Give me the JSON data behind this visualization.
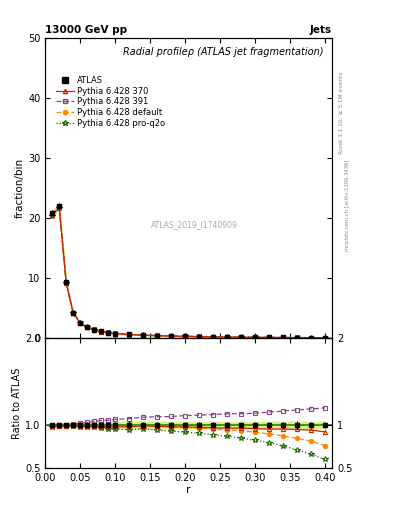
{
  "title_top": "13000 GeV pp",
  "title_right": "Jets",
  "main_title": "Radial profileρ (ATLAS jet fragmentation)",
  "watermark": "ATLAS_2019_I1740909",
  "right_label_top": "Rivet 3.1.10; ≥ 3.1M events",
  "right_label_bot": "mcplots.cern.ch [arXiv:1306.3436]",
  "xlabel": "r",
  "ylabel_main": "fraction/bin",
  "ylabel_ratio": "Ratio to ATLAS",
  "r_vals": [
    0.01,
    0.02,
    0.03,
    0.04,
    0.05,
    0.06,
    0.07,
    0.08,
    0.09,
    0.1,
    0.12,
    0.14,
    0.16,
    0.18,
    0.2,
    0.22,
    0.24,
    0.26,
    0.28,
    0.3,
    0.32,
    0.34,
    0.36,
    0.38,
    0.4
  ],
  "atlas_y": [
    20.8,
    22.0,
    9.3,
    4.2,
    2.55,
    1.82,
    1.42,
    1.12,
    0.92,
    0.77,
    0.61,
    0.5,
    0.42,
    0.355,
    0.305,
    0.262,
    0.225,
    0.193,
    0.168,
    0.147,
    0.128,
    0.112,
    0.098,
    0.086,
    0.076
  ],
  "atlas_err": [
    0.5,
    0.5,
    0.25,
    0.12,
    0.08,
    0.06,
    0.05,
    0.04,
    0.035,
    0.03,
    0.025,
    0.02,
    0.016,
    0.013,
    0.011,
    0.009,
    0.008,
    0.007,
    0.006,
    0.005,
    0.005,
    0.004,
    0.004,
    0.003,
    0.003
  ],
  "p370_y": [
    20.5,
    21.8,
    9.2,
    4.18,
    2.52,
    1.8,
    1.4,
    1.1,
    0.9,
    0.755,
    0.598,
    0.495,
    0.414,
    0.348,
    0.298,
    0.255,
    0.218,
    0.186,
    0.162,
    0.141,
    0.122,
    0.107,
    0.093,
    0.081,
    0.07
  ],
  "p391_y": [
    20.7,
    22.0,
    9.35,
    4.25,
    2.6,
    1.88,
    1.48,
    1.18,
    0.97,
    0.82,
    0.655,
    0.545,
    0.46,
    0.39,
    0.338,
    0.292,
    0.252,
    0.218,
    0.19,
    0.167,
    0.147,
    0.13,
    0.115,
    0.102,
    0.091
  ],
  "pdef_y": [
    20.6,
    21.9,
    9.25,
    4.2,
    2.53,
    1.81,
    1.41,
    1.11,
    0.91,
    0.76,
    0.6,
    0.497,
    0.415,
    0.348,
    0.297,
    0.253,
    0.215,
    0.182,
    0.157,
    0.135,
    0.115,
    0.098,
    0.083,
    0.07,
    0.058
  ],
  "pq2o_y": [
    20.4,
    21.7,
    9.18,
    4.16,
    2.5,
    1.78,
    1.38,
    1.08,
    0.88,
    0.735,
    0.578,
    0.477,
    0.396,
    0.33,
    0.28,
    0.237,
    0.2,
    0.168,
    0.143,
    0.121,
    0.102,
    0.085,
    0.07,
    0.057,
    0.046
  ],
  "atlas_color": "#000000",
  "p370_color": "#cc2200",
  "p391_color": "#884488",
  "pdef_color": "#ff8800",
  "pq2o_color": "#226600",
  "band_color_main": "#ddeeaa",
  "band_color_ratio": "#ddee88",
  "ylim_main": [
    0,
    50
  ],
  "ylim_ratio": [
    0.5,
    2.0
  ],
  "main_yticks": [
    0,
    10,
    20,
    30,
    40,
    50
  ],
  "ratio_yticks": [
    0.5,
    1.0,
    2.0
  ],
  "xlim": [
    0.0,
    0.41
  ]
}
